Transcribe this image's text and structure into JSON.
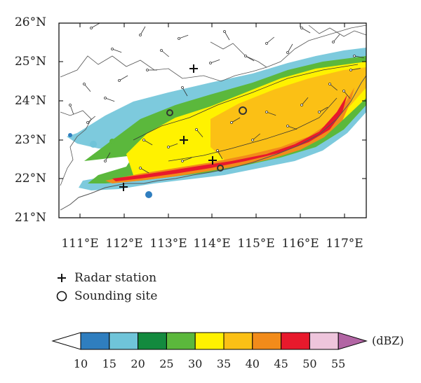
{
  "lat_ticks": [
    "21°N",
    "22°N",
    "23°N",
    "24°N",
    "25°N",
    "26°N"
  ],
  "lon_ticks": [
    "111°E",
    "112°E",
    "113°E",
    "114°E",
    "115°E",
    "116°E",
    "117°E"
  ],
  "legend": {
    "radar_label": "Radar station",
    "sounding_label": "Sounding site"
  },
  "colorbar": {
    "unit": "(dBZ)",
    "ticks": [
      "10",
      "15",
      "20",
      "25",
      "30",
      "35",
      "40",
      "45",
      "50",
      "55"
    ],
    "colors": [
      "#2f7ebf",
      "#6fc4d9",
      "#138a3e",
      "#5bb83c",
      "#fff200",
      "#fbc015",
      "#f28b1a",
      "#e8192c",
      "#eec5dc",
      "#b265a4"
    ]
  },
  "colors": {
    "coast": "#555555",
    "frame": "#000000"
  }
}
